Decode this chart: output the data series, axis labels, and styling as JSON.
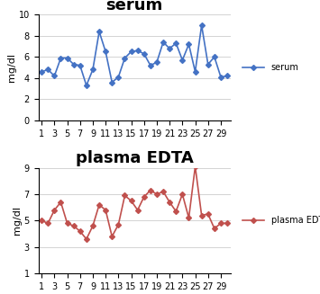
{
  "serum": {
    "title": "serum",
    "ylabel": "mg/dl",
    "x": [
      1,
      2,
      3,
      4,
      5,
      6,
      7,
      8,
      9,
      10,
      11,
      12,
      13,
      14,
      15,
      16,
      17,
      18,
      19,
      20,
      21,
      22,
      23,
      24,
      25,
      26,
      27,
      28,
      29,
      30
    ],
    "y": [
      4.6,
      4.8,
      4.2,
      5.9,
      5.9,
      5.3,
      5.2,
      3.3,
      4.8,
      8.4,
      6.5,
      3.6,
      4.1,
      5.9,
      6.5,
      6.6,
      6.3,
      5.2,
      5.5,
      7.4,
      6.8,
      7.3,
      5.7,
      7.2,
      4.6,
      9.0,
      5.3,
      6.0,
      4.1,
      4.2
    ],
    "color": "#4472C4",
    "legend": "serum",
    "ylim": [
      0,
      10
    ],
    "yticks": [
      0,
      2,
      4,
      6,
      8,
      10
    ],
    "xticks": [
      1,
      3,
      5,
      7,
      9,
      11,
      13,
      15,
      17,
      19,
      21,
      23,
      25,
      27,
      29
    ]
  },
  "plasma": {
    "title": "plasma EDTA",
    "ylabel": "mg/dl",
    "x": [
      1,
      2,
      3,
      4,
      5,
      6,
      7,
      8,
      9,
      10,
      11,
      12,
      13,
      14,
      15,
      16,
      17,
      18,
      19,
      20,
      21,
      22,
      23,
      24,
      25,
      26,
      27,
      28,
      29,
      30
    ],
    "y": [
      5.0,
      4.8,
      5.8,
      6.4,
      4.8,
      4.6,
      4.2,
      3.6,
      4.6,
      6.2,
      5.8,
      3.8,
      4.7,
      6.9,
      6.5,
      5.8,
      6.8,
      7.3,
      7.0,
      7.2,
      6.4,
      5.7,
      7.0,
      5.2,
      9.1,
      5.4,
      5.5,
      4.4,
      4.8,
      4.8
    ],
    "color": "#C0504D",
    "legend": "plasma EDTA",
    "ylim": [
      1,
      9
    ],
    "yticks": [
      1,
      3,
      5,
      7,
      9
    ],
    "xticks": [
      1,
      3,
      5,
      7,
      9,
      11,
      13,
      15,
      17,
      19,
      21,
      23,
      25,
      27,
      29
    ]
  },
  "title_fontsize": 13,
  "label_fontsize": 8,
  "tick_fontsize": 7,
  "legend_fontsize": 7,
  "marker": "D",
  "markersize": 3,
  "linewidth": 1.2
}
